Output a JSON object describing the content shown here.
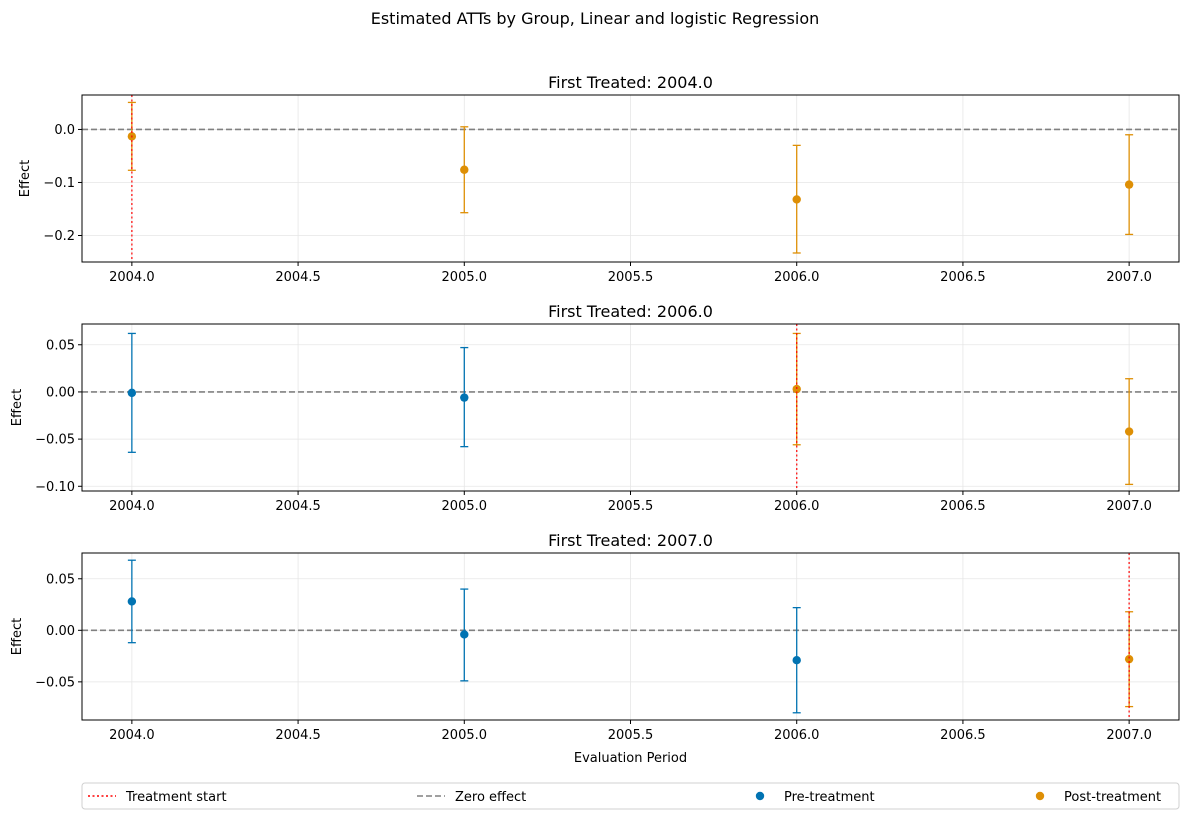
{
  "suptitle": "Estimated ATTs by Group, Linear and logistic Regression",
  "xlabel": "Evaluation Period",
  "ylabel": "Effect",
  "colors": {
    "pre": "#0173b2",
    "post": "#de8f05",
    "treatment_line": "#ff0000",
    "zero_line": "#808080",
    "grid": "#e6e6e6"
  },
  "legend": {
    "placement": "bottom",
    "items": [
      {
        "label": "Treatment start",
        "style": "dotted-line"
      },
      {
        "label": "Zero effect",
        "style": "dashed-line"
      },
      {
        "label": "Pre-treatment",
        "style": "pre-marker"
      },
      {
        "label": "Post-treatment",
        "style": "post-marker"
      }
    ]
  },
  "chart_data": [
    {
      "type": "scatter",
      "title": "First Treated: 2004.0",
      "treatment_start": 2004.0,
      "xlim": [
        2003.85,
        2007.15
      ],
      "ylim": [
        -0.25,
        0.065
      ],
      "xticks": [
        "2004.0",
        "2004.5",
        "2005.0",
        "2005.5",
        "2006.0",
        "2006.5",
        "2007.0"
      ],
      "yticks": [
        "0.0",
        "−0.1",
        "−0.2"
      ],
      "ytick_values": [
        0.0,
        -0.1,
        -0.2
      ],
      "grid": true,
      "points": [
        {
          "x": 2004.0,
          "y": -0.013,
          "low": -0.077,
          "high": 0.051,
          "period": "post"
        },
        {
          "x": 2005.0,
          "y": -0.076,
          "low": -0.157,
          "high": 0.005,
          "period": "post"
        },
        {
          "x": 2006.0,
          "y": -0.132,
          "low": -0.233,
          "high": -0.03,
          "period": "post"
        },
        {
          "x": 2007.0,
          "y": -0.104,
          "low": -0.198,
          "high": -0.01,
          "period": "post"
        }
      ]
    },
    {
      "type": "scatter",
      "title": "First Treated: 2006.0",
      "treatment_start": 2006.0,
      "xlim": [
        2003.85,
        2007.15
      ],
      "ylim": [
        -0.105,
        0.072
      ],
      "xticks": [
        "2004.0",
        "2004.5",
        "2005.0",
        "2005.5",
        "2006.0",
        "2006.5",
        "2007.0"
      ],
      "yticks": [
        "0.05",
        "0.00",
        "−0.05",
        "−0.10"
      ],
      "ytick_values": [
        0.05,
        0.0,
        -0.05,
        -0.1
      ],
      "grid": true,
      "points": [
        {
          "x": 2004.0,
          "y": -0.001,
          "low": -0.064,
          "high": 0.062,
          "period": "pre"
        },
        {
          "x": 2005.0,
          "y": -0.006,
          "low": -0.058,
          "high": 0.047,
          "period": "pre"
        },
        {
          "x": 2006.0,
          "y": 0.003,
          "low": -0.056,
          "high": 0.062,
          "period": "post"
        },
        {
          "x": 2007.0,
          "y": -0.042,
          "low": -0.098,
          "high": 0.014,
          "period": "post"
        }
      ]
    },
    {
      "type": "scatter",
      "title": "First Treated: 2007.0",
      "treatment_start": 2007.0,
      "xlim": [
        2003.85,
        2007.15
      ],
      "ylim": [
        -0.087,
        0.075
      ],
      "xticks": [
        "2004.0",
        "2004.5",
        "2005.0",
        "2005.5",
        "2006.0",
        "2006.5",
        "2007.0"
      ],
      "yticks": [
        "0.05",
        "0.00",
        "−0.05"
      ],
      "ytick_values": [
        0.05,
        0.0,
        -0.05
      ],
      "grid": true,
      "show_xlabel": true,
      "points": [
        {
          "x": 2004.0,
          "y": 0.028,
          "low": -0.012,
          "high": 0.068,
          "period": "pre"
        },
        {
          "x": 2005.0,
          "y": -0.004,
          "low": -0.049,
          "high": 0.04,
          "period": "pre"
        },
        {
          "x": 2006.0,
          "y": -0.029,
          "low": -0.08,
          "high": 0.022,
          "period": "pre"
        },
        {
          "x": 2007.0,
          "y": -0.028,
          "low": -0.074,
          "high": 0.018,
          "period": "post"
        }
      ]
    }
  ]
}
